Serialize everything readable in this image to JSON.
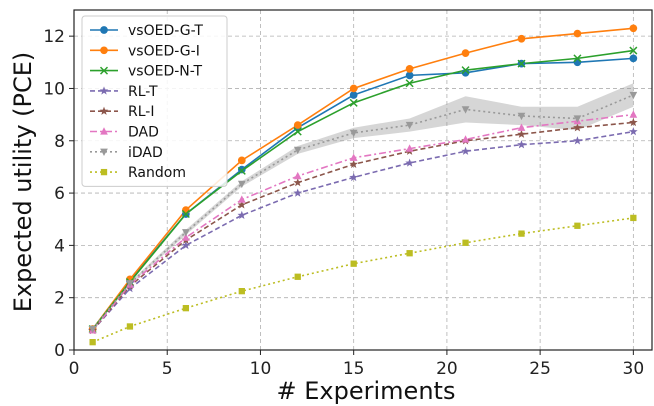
{
  "chart_data": {
    "type": "line",
    "xlabel": "# Experiments",
    "ylabel": "Expected utility (PCE)",
    "xlim": [
      0,
      31
    ],
    "ylim": [
      0,
      13
    ],
    "xticks": [
      "0",
      "5",
      "10",
      "15",
      "20",
      "25",
      "30"
    ],
    "yticks": [
      "0",
      "2",
      "4",
      "6",
      "8",
      "10",
      "12"
    ],
    "grid": true,
    "legend_position": "top-left",
    "x": [
      1,
      3,
      6,
      9,
      12,
      15,
      18,
      21,
      24,
      27,
      30
    ],
    "series": [
      {
        "name": "vsOED-G-T",
        "color": "#1f77b4",
        "style": "solid",
        "marker": "circle",
        "values": [
          0.8,
          2.65,
          5.2,
          6.9,
          8.5,
          9.75,
          10.5,
          10.6,
          10.95,
          11.0,
          11.15
        ]
      },
      {
        "name": "vsOED-G-I",
        "color": "#ff7f0e",
        "style": "solid",
        "marker": "circle",
        "values": [
          0.8,
          2.7,
          5.35,
          7.25,
          8.6,
          10.0,
          10.75,
          11.35,
          11.9,
          12.1,
          12.3
        ]
      },
      {
        "name": "vsOED-N-T",
        "color": "#2ca02c",
        "style": "solid",
        "marker": "x",
        "values": [
          0.8,
          2.6,
          5.2,
          6.85,
          8.35,
          9.45,
          10.2,
          10.7,
          10.95,
          11.15,
          11.45
        ]
      },
      {
        "name": "RL-T",
        "color": "#7b6bb0",
        "style": "dashed",
        "marker": "star",
        "values": [
          0.75,
          2.35,
          4.0,
          5.15,
          6.0,
          6.6,
          7.15,
          7.6,
          7.85,
          8.0,
          8.35
        ]
      },
      {
        "name": "RL-I",
        "color": "#8c564b",
        "style": "dashed",
        "marker": "star",
        "values": [
          0.75,
          2.45,
          4.2,
          5.55,
          6.4,
          7.1,
          7.6,
          8.0,
          8.25,
          8.5,
          8.7
        ]
      },
      {
        "name": "DAD",
        "color": "#e377c2",
        "style": "dashdot",
        "marker": "triangle",
        "values": [
          0.75,
          2.5,
          4.3,
          5.75,
          6.65,
          7.35,
          7.7,
          8.05,
          8.5,
          8.75,
          9.0
        ]
      },
      {
        "name": "iDAD",
        "color": "#999999",
        "style": "dotted",
        "marker": "triangle-down",
        "values": [
          0.8,
          2.55,
          4.5,
          6.35,
          7.65,
          8.3,
          8.6,
          9.2,
          8.95,
          8.85,
          9.75
        ],
        "band": [
          0.05,
          0.05,
          0.1,
          0.1,
          0.15,
          0.2,
          0.25,
          0.5,
          0.35,
          0.45,
          0.45
        ]
      },
      {
        "name": "Random",
        "color": "#bcbd22",
        "style": "dotted",
        "marker": "square",
        "values": [
          0.3,
          0.9,
          1.6,
          2.25,
          2.8,
          3.3,
          3.7,
          4.1,
          4.45,
          4.75,
          5.05
        ]
      }
    ]
  }
}
